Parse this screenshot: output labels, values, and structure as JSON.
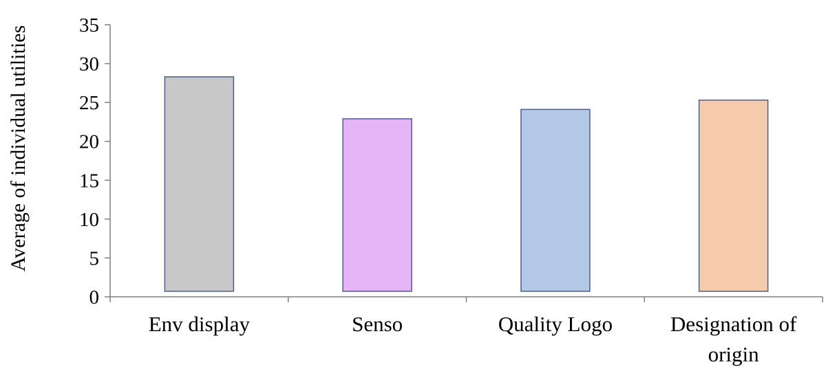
{
  "chart_data": {
    "type": "bar",
    "title": "",
    "xlabel": "",
    "ylabel": "Average of individual utilities",
    "ylim": [
      0,
      35
    ],
    "yticks": [
      0,
      5,
      10,
      15,
      20,
      25,
      30,
      35
    ],
    "grid": false,
    "legend": "none",
    "categories": [
      [
        "Env display"
      ],
      [
        "Senso"
      ],
      [
        "Quality Logo"
      ],
      [
        "Designation of",
        "origin"
      ]
    ],
    "values": [
      28.3,
      22.9,
      24.1,
      25.3
    ],
    "colors": [
      "#c8c8c8",
      "#e4b4f4",
      "#b4c8e8",
      "#f6cbab"
    ],
    "bar_edge_color": "#4a5d96",
    "axis_color": "#7f7f7f"
  }
}
